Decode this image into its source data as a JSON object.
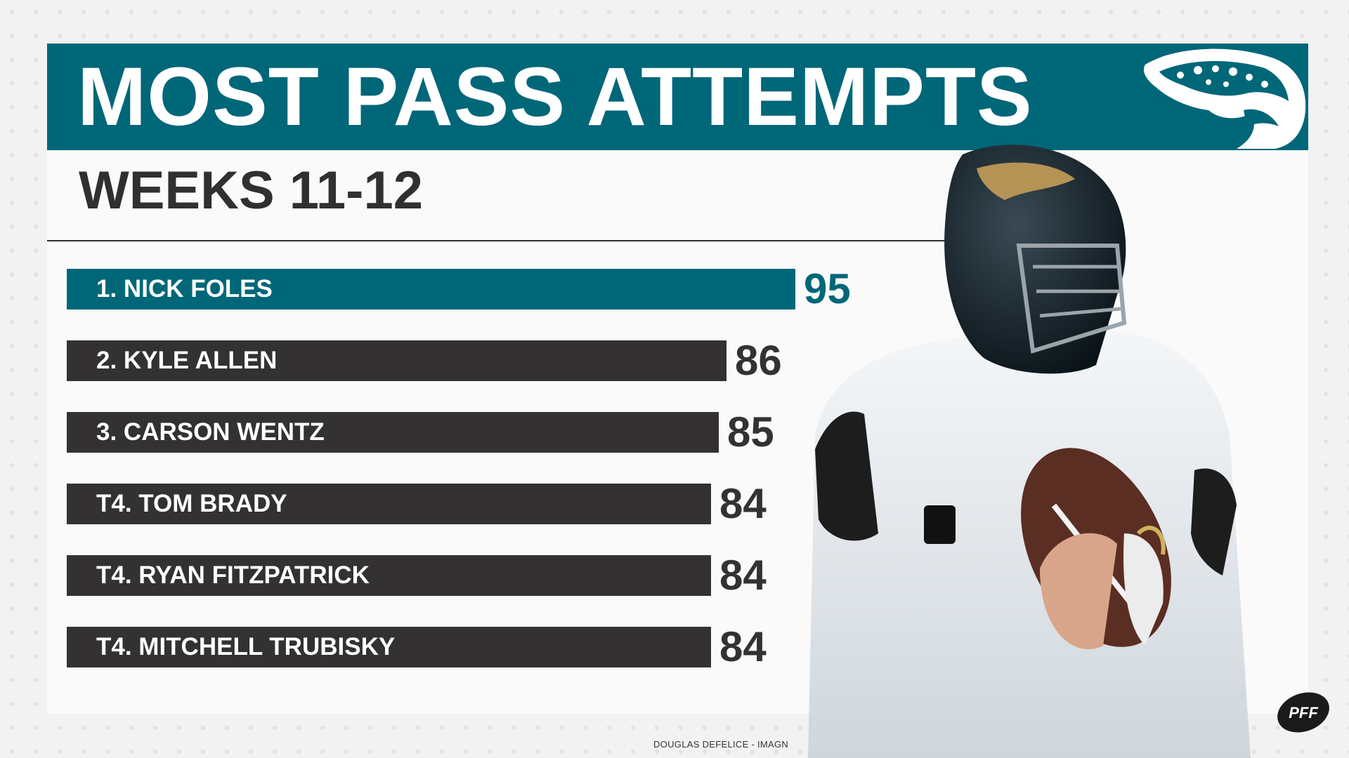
{
  "title": "MOST PASS ATTEMPTS",
  "subtitle": "WEEKS 11-12",
  "credit": "DOUGLAS DEFELICE - IMAGN",
  "brand": "PFF",
  "colors": {
    "teal": "#006778",
    "dark": "#333131",
    "white": "#ffffff"
  },
  "icons": {
    "team_logo": "jaguar-head-logo",
    "brand_logo": "pff-logo",
    "photo": "quarterback-photo"
  },
  "chart_data": {
    "type": "bar",
    "orientation": "horizontal",
    "title": "MOST PASS ATTEMPTS",
    "subtitle": "WEEKS 11-12",
    "categories": [
      "1. NICK FOLES",
      "2. KYLE ALLEN",
      "3. CARSON WENTZ",
      "T4. TOM BRADY",
      "T4. RYAN FITZPATRICK",
      "T4. MITCHELL TRUBISKY"
    ],
    "values": [
      95,
      86,
      85,
      84,
      84,
      84
    ],
    "highlight_index": 0,
    "xlabel": "",
    "ylabel": "",
    "grid": false,
    "data_labels": true
  }
}
